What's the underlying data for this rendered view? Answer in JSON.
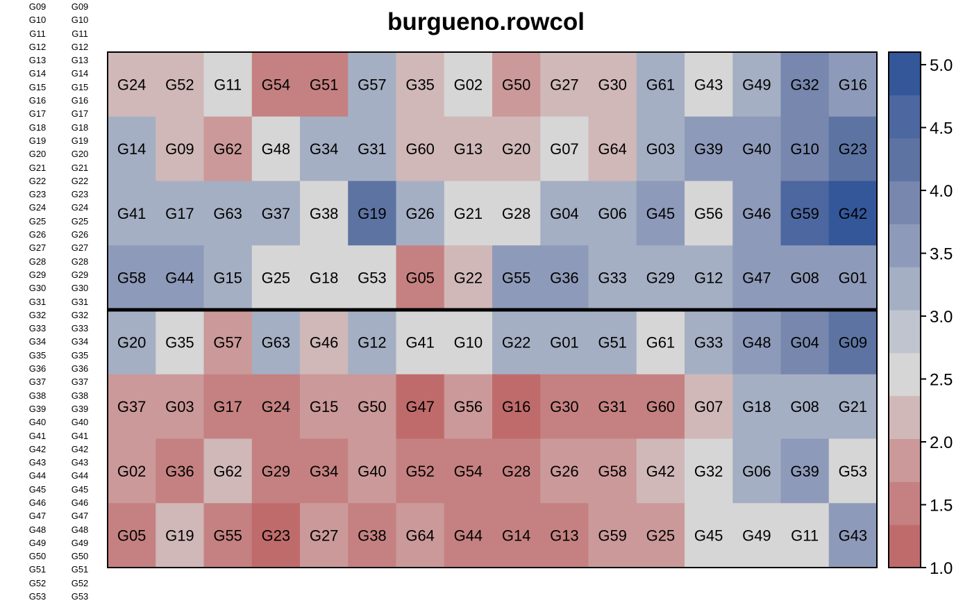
{
  "left_labels": {
    "col1": [
      "G09",
      "G10",
      "G11",
      "G12",
      "G13",
      "G14",
      "G15",
      "G16",
      "G17",
      "G18",
      "G19",
      "G20",
      "G21",
      "G22",
      "G23",
      "G24",
      "G25",
      "G26",
      "G27",
      "G28",
      "G29",
      "G30",
      "G31",
      "G32",
      "G33",
      "G34",
      "G35",
      "G36",
      "G37",
      "G38",
      "G39",
      "G40",
      "G41",
      "G42",
      "G43",
      "G44",
      "G45",
      "G46",
      "G47",
      "G48",
      "G49",
      "G50",
      "G51",
      "G52",
      "G53"
    ],
    "col2": [
      "G09",
      "G10",
      "G11",
      "G12",
      "G13",
      "G14",
      "G15",
      "G16",
      "G17",
      "G18",
      "G19",
      "G20",
      "G21",
      "G22",
      "G23",
      "G24",
      "G25",
      "G26",
      "G27",
      "G28",
      "G29",
      "G30",
      "G31",
      "G32",
      "G33",
      "G34",
      "G35",
      "G36",
      "G37",
      "G38",
      "G39",
      "G40",
      "G41",
      "G42",
      "G43",
      "G44",
      "G45",
      "G46",
      "G47",
      "G48",
      "G49",
      "G50",
      "G51",
      "G52",
      "G53"
    ]
  },
  "chart_data": {
    "type": "heatmap",
    "title": "burgueno.rowcol",
    "legend": {
      "position": "right",
      "ticks": [
        "1.0",
        "1.5",
        "2.0",
        "2.5",
        "3.0",
        "3.5",
        "4.0",
        "4.5",
        "5.0"
      ],
      "range": [
        1.0,
        5.1
      ],
      "colors": [
        "#c06b6b",
        "#c58181",
        "#cb9999",
        "#d0b8b8",
        "#d6d6d6",
        "#bfc4cf",
        "#a5afc3",
        "#8e9ab9",
        "#7787ad",
        "#5d74a3",
        "#4d67a0",
        "#34579a"
      ]
    },
    "rows": 8,
    "cols": 16,
    "divider_after_row": 4,
    "labels": [
      [
        "G24",
        "G52",
        "G11",
        "G54",
        "G51",
        "G57",
        "G35",
        "G02",
        "G50",
        "G27",
        "G30",
        "G61",
        "G43",
        "G49",
        "G32",
        "G16"
      ],
      [
        "G14",
        "G09",
        "G62",
        "G48",
        "G34",
        "G31",
        "G60",
        "G13",
        "G20",
        "G07",
        "G64",
        "G03",
        "G39",
        "G40",
        "G10",
        "G23"
      ],
      [
        "G41",
        "G17",
        "G63",
        "G37",
        "G38",
        "G19",
        "G26",
        "G21",
        "G28",
        "G04",
        "G06",
        "G45",
        "G56",
        "G46",
        "G59",
        "G42"
      ],
      [
        "G58",
        "G44",
        "G15",
        "G25",
        "G18",
        "G53",
        "G05",
        "G22",
        "G55",
        "G36",
        "G33",
        "G29",
        "G12",
        "G47",
        "G08",
        "G01"
      ],
      [
        "G20",
        "G35",
        "G57",
        "G63",
        "G46",
        "G12",
        "G41",
        "G10",
        "G22",
        "G01",
        "G51",
        "G61",
        "G33",
        "G48",
        "G04",
        "G09"
      ],
      [
        "G37",
        "G03",
        "G17",
        "G24",
        "G15",
        "G50",
        "G47",
        "G56",
        "G16",
        "G30",
        "G31",
        "G60",
        "G07",
        "G18",
        "G08",
        "G21"
      ],
      [
        "G02",
        "G36",
        "G62",
        "G29",
        "G34",
        "G40",
        "G52",
        "G54",
        "G28",
        "G26",
        "G58",
        "G42",
        "G32",
        "G06",
        "G39",
        "G53"
      ],
      [
        "G05",
        "G19",
        "G55",
        "G23",
        "G27",
        "G38",
        "G64",
        "G44",
        "G14",
        "G13",
        "G59",
        "G25",
        "G45",
        "G49",
        "G11",
        "G43"
      ]
    ],
    "values": [
      [
        2.2,
        2.2,
        2.6,
        1.6,
        1.6,
        3.1,
        2.2,
        2.6,
        1.8,
        2.2,
        2.2,
        3.1,
        2.6,
        3.3,
        3.9,
        3.6
      ],
      [
        3.1,
        2.2,
        1.8,
        2.6,
        3.1,
        3.1,
        2.2,
        2.2,
        2.2,
        2.6,
        2.2,
        3.1,
        3.6,
        3.6,
        3.9,
        4.3
      ],
      [
        3.1,
        3.1,
        3.3,
        3.3,
        2.6,
        4.1,
        3.1,
        2.6,
        2.6,
        3.3,
        3.3,
        3.6,
        2.6,
        3.6,
        4.6,
        4.9
      ],
      [
        3.6,
        3.6,
        3.1,
        2.6,
        2.6,
        2.6,
        1.6,
        2.2,
        3.6,
        3.6,
        3.3,
        3.1,
        3.3,
        3.6,
        3.6,
        3.6
      ],
      [
        3.3,
        2.6,
        1.8,
        3.3,
        2.2,
        3.1,
        2.6,
        2.6,
        3.1,
        3.1,
        3.3,
        2.6,
        3.1,
        3.6,
        3.9,
        4.3
      ],
      [
        1.8,
        1.8,
        1.6,
        1.6,
        1.8,
        1.8,
        1.3,
        1.8,
        1.3,
        1.6,
        1.6,
        1.6,
        2.2,
        3.1,
        3.3,
        3.3
      ],
      [
        1.8,
        1.6,
        2.2,
        1.6,
        1.6,
        1.8,
        1.6,
        1.6,
        1.6,
        1.8,
        1.8,
        2.2,
        2.6,
        3.1,
        3.6,
        2.6
      ],
      [
        1.6,
        2.2,
        1.6,
        1.3,
        1.8,
        1.6,
        1.8,
        1.6,
        1.6,
        1.6,
        1.8,
        1.8,
        2.6,
        2.6,
        2.6,
        3.6
      ]
    ]
  }
}
